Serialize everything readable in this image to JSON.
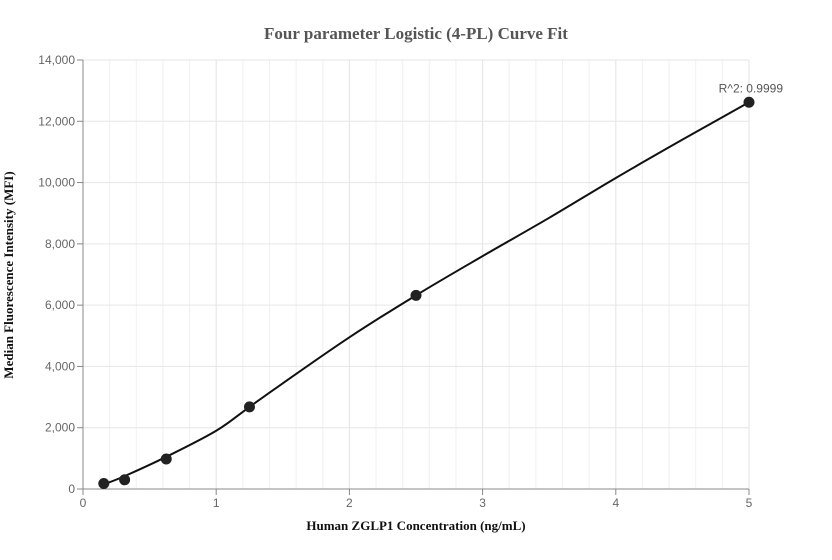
{
  "chart_data": {
    "type": "scatter",
    "title": "Four parameter Logistic (4-PL) Curve Fit",
    "xlabel": "Human ZGLP1 Concentration (ng/mL)",
    "ylabel": "Median Fluorescence Intensity (MFI)",
    "xlim": [
      0,
      5
    ],
    "ylim": [
      0,
      14000
    ],
    "x_ticks": [
      0,
      1,
      2,
      3,
      4,
      5
    ],
    "x_tick_labels": [
      "0",
      "1",
      "2",
      "3",
      "4",
      "5"
    ],
    "y_ticks": [
      0,
      2000,
      4000,
      6000,
      8000,
      10000,
      12000,
      14000
    ],
    "y_tick_labels": [
      "0",
      "2,000",
      "4,000",
      "6,000",
      "8,000",
      "10,000",
      "12,000",
      "14,000"
    ],
    "grid": true,
    "series": [
      {
        "points": [
          {
            "x": 0.156,
            "y": 180
          },
          {
            "x": 0.3125,
            "y": 300
          },
          {
            "x": 0.625,
            "y": 980
          },
          {
            "x": 1.25,
            "y": 2680
          },
          {
            "x": 2.5,
            "y": 6320
          },
          {
            "x": 5,
            "y": 12620
          }
        ],
        "fit_curve": [
          [
            0.156,
            150
          ],
          [
            0.3125,
            420
          ],
          [
            0.625,
            1050
          ],
          [
            1.0,
            1900
          ],
          [
            1.25,
            2680
          ],
          [
            1.5,
            3450
          ],
          [
            2.0,
            4950
          ],
          [
            2.5,
            6320
          ],
          [
            3.0,
            7600
          ],
          [
            3.5,
            8850
          ],
          [
            4.0,
            10150
          ],
          [
            4.5,
            11400
          ],
          [
            5.0,
            12620
          ]
        ]
      }
    ],
    "annotations": [
      {
        "text": "R^2: 0.9999",
        "x": 5,
        "y": 12620
      }
    ]
  }
}
